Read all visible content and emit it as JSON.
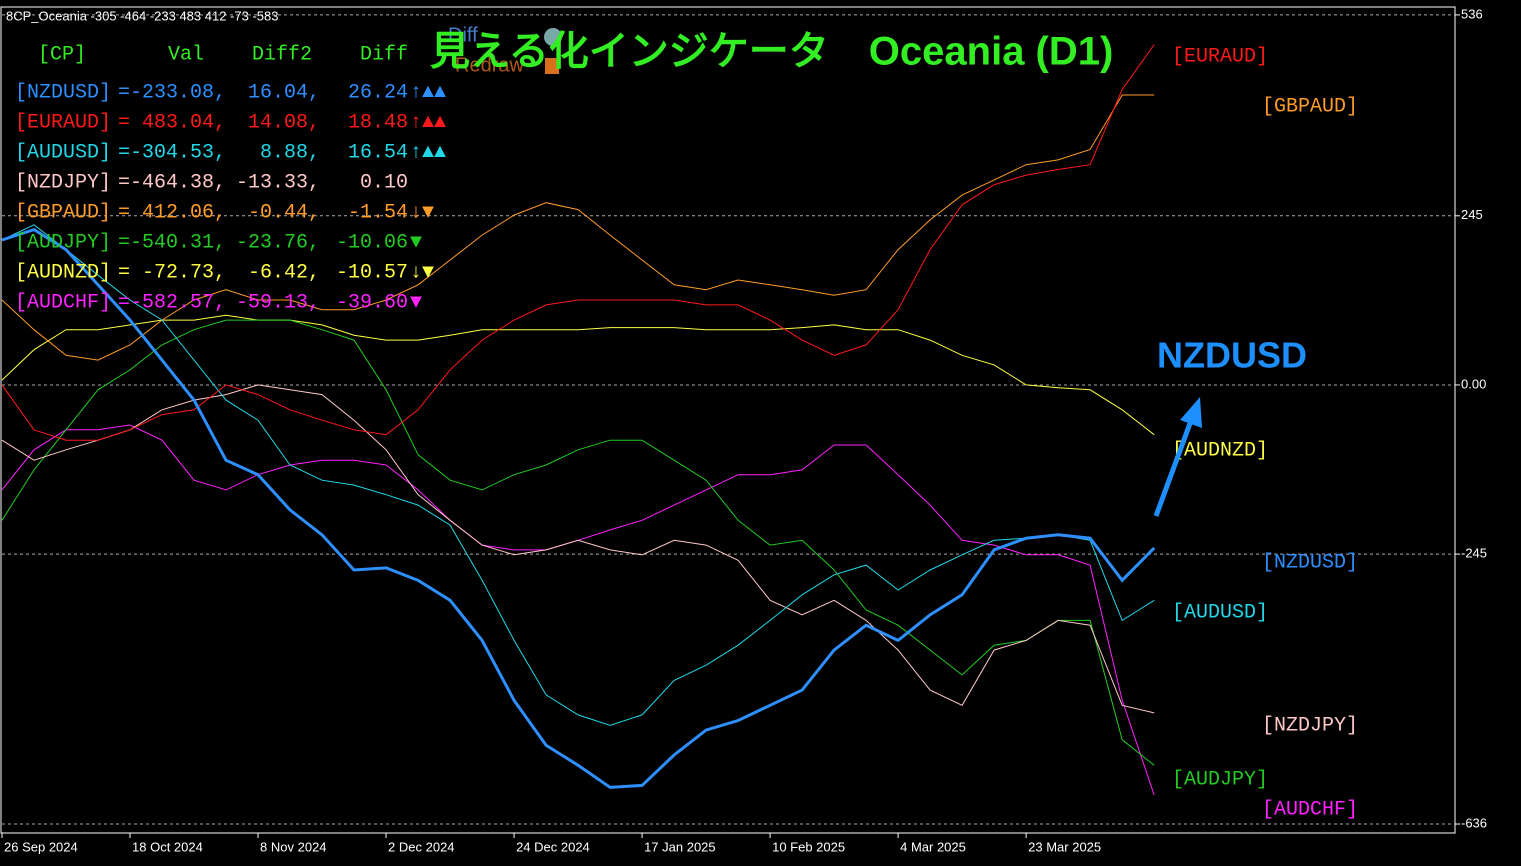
{
  "chart_data": {
    "type": "line",
    "header_text": "8CP_Oceania -305 -464 -233 483 412 -73 -583",
    "title": "見える化インジケータ　Oceania (D1)",
    "buttons": [
      "Diff",
      "Redraw"
    ],
    "annotation": "NZDUSD",
    "panel": {
      "header": [
        "[CP]",
        "Val",
        "Diff2",
        "Diff"
      ],
      "rows": [
        [
          "[NZDUSD]",
          "=-233.08,",
          "16.04,",
          "26.24",
          "↑▲▲"
        ],
        [
          "[EURAUD]",
          "= 483.04,",
          "14.08,",
          "18.48",
          "↑▲▲"
        ],
        [
          "[AUDUSD]",
          "=-304.53,",
          "8.88,",
          "16.54",
          "↑▲▲"
        ],
        [
          "[NZDJPY]",
          "=-464.38,",
          "-13.33,",
          "0.10",
          ""
        ],
        [
          "[GBPAUD]",
          "= 412.06,",
          "-0.44,",
          "-1.54",
          "↓▼"
        ],
        [
          "[AUDJPY]",
          "=-540.31,",
          "-23.76,",
          "-10.06",
          "▼"
        ],
        [
          "[AUDNZD]",
          "= -72.73,",
          "-6.42,",
          "-10.57",
          "↓▼"
        ],
        [
          "[AUDCHF]",
          "=-582.57,",
          "-59.13,",
          "-39.60",
          "▼"
        ]
      ]
    },
    "x": [
      0,
      1,
      2,
      3,
      4,
      5,
      6,
      7,
      8,
      9,
      10,
      11,
      12,
      13,
      14,
      15,
      16,
      17,
      18,
      19,
      20,
      21,
      22,
      23,
      24,
      25,
      26,
      27,
      28,
      29,
      30,
      31,
      32,
      33,
      34,
      35,
      36
    ],
    "xlim": [
      0,
      45.4
    ],
    "xticks": [
      {
        "value": 0,
        "label": "26 Sep 2024"
      },
      {
        "value": 4,
        "label": "18 Oct 2024"
      },
      {
        "value": 8,
        "label": "8 Nov 2024"
      },
      {
        "value": 12,
        "label": "2 Dec 2024"
      },
      {
        "value": 16,
        "label": "24 Dec 2024"
      },
      {
        "value": 20,
        "label": "17 Jan 2025"
      },
      {
        "value": 24,
        "label": "10 Feb 2025"
      },
      {
        "value": 28,
        "label": "4 Mar 2025"
      },
      {
        "value": 32,
        "label": "23 Mar 2025"
      }
    ],
    "ylim": [
      -649,
      546
    ],
    "yticks": [
      536,
      245,
      {
        "value": 0,
        "label": "0.00"
      },
      -245,
      -636
    ],
    "grid": true,
    "series": [
      {
        "name": "[NZDUSD]",
        "color": "#2e8fff",
        "values": [
          210,
          225,
          196,
          145,
          94,
          36,
          -22,
          -109,
          -130,
          -181,
          -217,
          -268,
          -265,
          -283,
          -312,
          -370,
          -457,
          -522,
          -551,
          -583,
          -580,
          -536,
          -500,
          -486,
          -464,
          -442,
          -384,
          -348,
          -370,
          -333,
          -304,
          -239,
          -222,
          -217,
          -222,
          -283,
          -236
        ]
      },
      {
        "name": "[EURAUD]",
        "color": "#ff1a1a",
        "values": [
          0,
          -65,
          -80,
          -80,
          -65,
          -43,
          -36,
          0,
          -14,
          -36,
          -51,
          -65,
          -72,
          -36,
          22,
          65,
          94,
          116,
          123,
          123,
          123,
          123,
          116,
          116,
          94,
          65,
          43,
          58,
          109,
          196,
          261,
          290,
          304,
          312,
          319,
          428,
          493
        ]
      },
      {
        "name": "[AUDUSD]",
        "color": "#22d8e8",
        "values": [
          210,
          232,
          196,
          159,
          123,
          94,
          36,
          -22,
          -51,
          -116,
          -138,
          -145,
          -159,
          -174,
          -203,
          -283,
          -370,
          -449,
          -478,
          -493,
          -478,
          -428,
          -406,
          -377,
          -341,
          -304,
          -275,
          -261,
          -297,
          -268,
          -246,
          -225,
          -222,
          -217,
          -225,
          -341,
          -312
        ]
      },
      {
        "name": "[NZDJPY]",
        "color": "#ffc8c8",
        "values": [
          -80,
          -109,
          -94,
          -80,
          -65,
          -36,
          -22,
          -14,
          0,
          -7,
          -14,
          -51,
          -94,
          -159,
          -196,
          -232,
          -246,
          -239,
          -225,
          -239,
          -246,
          -225,
          -232,
          -254,
          -312,
          -333,
          -312,
          -341,
          -384,
          -442,
          -464,
          -384,
          -370,
          -341,
          -348,
          -464,
          -475
        ]
      },
      {
        "name": "[GBPAUD]",
        "color": "#ff9c2a",
        "values": [
          123,
          80,
          43,
          36,
          58,
          94,
          123,
          138,
          123,
          123,
          109,
          109,
          123,
          145,
          181,
          217,
          246,
          264,
          254,
          217,
          181,
          145,
          138,
          152,
          145,
          138,
          130,
          138,
          196,
          239,
          275,
          297,
          319,
          326,
          341,
          420,
          420
        ]
      },
      {
        "name": "[AUDJPY]",
        "color": "#22cc22",
        "values": [
          -196,
          -123,
          -65,
          -7,
          22,
          58,
          80,
          94,
          94,
          94,
          80,
          65,
          -7,
          -101,
          -138,
          -152,
          -130,
          -116,
          -94,
          -80,
          -80,
          -109,
          -138,
          -196,
          -232,
          -225,
          -268,
          -326,
          -348,
          -384,
          -420,
          -377,
          -370,
          -341,
          -341,
          -514,
          -551
        ]
      },
      {
        "name": "[AUDNZD]",
        "color": "#ffff44",
        "values": [
          7,
          51,
          80,
          80,
          87,
          94,
          94,
          101,
          94,
          94,
          87,
          72,
          65,
          65,
          72,
          80,
          80,
          80,
          80,
          83,
          83,
          83,
          80,
          80,
          80,
          83,
          87,
          80,
          80,
          65,
          43,
          29,
          0,
          -4,
          -7,
          -36,
          -72
        ]
      },
      {
        "name": "[AUDCHF]",
        "color": "#ff22ff",
        "values": [
          -152,
          -94,
          -65,
          -65,
          -58,
          -80,
          -138,
          -152,
          -130,
          -116,
          -109,
          -109,
          -116,
          -152,
          -196,
          -232,
          -239,
          -239,
          -225,
          -210,
          -196,
          -174,
          -152,
          -130,
          -130,
          -123,
          -87,
          -87,
          -130,
          -174,
          -225,
          -232,
          -246,
          -246,
          -261,
          -457,
          -594
        ]
      }
    ]
  }
}
